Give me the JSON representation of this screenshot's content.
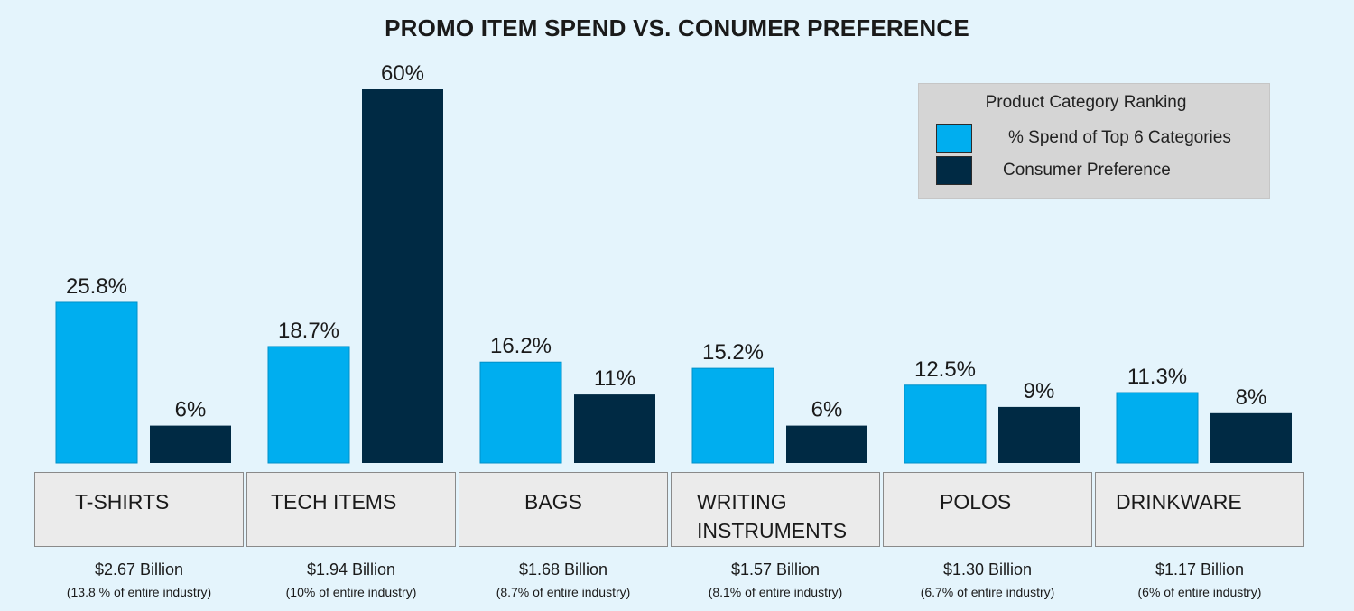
{
  "chart_data": {
    "type": "bar",
    "title": "PROMO ITEM SPEND VS. CONUMER PREFERENCE",
    "categories": [
      "T-SHIRTS",
      "TECH ITEMS",
      "BAGS",
      "WRITING\nINSTRUMENTS",
      "POLOS",
      "DRINKWARE"
    ],
    "series": [
      {
        "name": "% Spend of Top 6 Categories",
        "values": [
          25.8,
          18.7,
          16.2,
          15.2,
          12.5,
          11.3
        ],
        "labels": [
          "25.8%",
          "18.7%",
          "16.2%",
          "15.2%",
          "12.5%",
          "11.3%"
        ],
        "color": "#00aeef"
      },
      {
        "name": "Consumer Preference",
        "values": [
          6,
          60,
          11,
          6,
          9,
          8
        ],
        "labels": [
          "6%",
          "60%",
          "11%",
          "6%",
          "9%",
          "8%"
        ],
        "color": "#002a44"
      }
    ],
    "spend": [
      "$2.67 Billion",
      "$1.94 Billion",
      "$1.68 Billion",
      "$1.57 Billion",
      "$1.30 Billion",
      "$1.17 Billion"
    ],
    "industry_share": [
      "(13.8 % of entire industry)",
      "(10% of entire industry)",
      "(8.7% of entire industry)",
      "(8.1% of entire industry)",
      "(6.7% of entire industry)",
      "(6% of entire industry)"
    ],
    "legend": {
      "title": "Product Category Ranking",
      "position": "top-right"
    },
    "ylim": [
      0,
      60
    ],
    "grid": false
  }
}
